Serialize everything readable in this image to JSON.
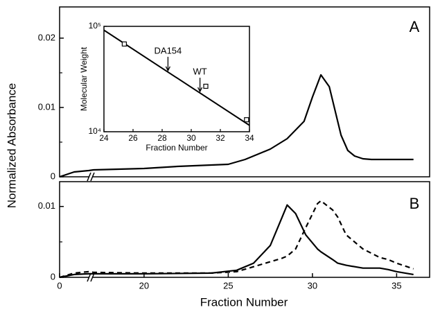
{
  "chart_data": [
    {
      "type": "line",
      "panel_label": "A",
      "ylabel": "Normalized Absorbance",
      "ylim": [
        0,
        0.0245
      ],
      "yticks": [
        0,
        0.01,
        0.02
      ],
      "minor_yticks": [
        0.005,
        0.015
      ],
      "xlim": [
        0,
        37
      ],
      "xbreak": [
        4,
        17
      ],
      "x": [
        0,
        2,
        4,
        17,
        20,
        22,
        25,
        26,
        27,
        27.5,
        28.5,
        29.5,
        30,
        30.5,
        31,
        31.4,
        31.7,
        32.1,
        32.5,
        33,
        33.5,
        36
      ],
      "series": [
        {
          "color": "#000000",
          "dash": false,
          "values": [
            0,
            0.0007,
            0.0009,
            0.001,
            0.0012,
            0.0015,
            0.0018,
            0.0025,
            0.0035,
            0.004,
            0.0055,
            0.008,
            0.0115,
            0.0147,
            0.013,
            0.009,
            0.006,
            0.0038,
            0.003,
            0.0026,
            0.0025,
            0.0025
          ]
        }
      ]
    },
    {
      "type": "line",
      "panel_label": "B",
      "xlabel": "Fraction Number",
      "ylim": [
        0,
        0.0135
      ],
      "yticks": [
        0,
        0.01
      ],
      "minor_yticks": [
        0.005
      ],
      "xlim": [
        0,
        37
      ],
      "xbreak": [
        4,
        17
      ],
      "xticks": [
        0,
        20,
        25,
        30,
        35
      ],
      "x": [
        0,
        2,
        4,
        17,
        20,
        24,
        25.5,
        26.5,
        27.5,
        28.2,
        28.5,
        29,
        29.6,
        30.3,
        30.5,
        31.2,
        31.5,
        32,
        33,
        34,
        34.5,
        35,
        36
      ],
      "series": [
        {
          "color": "#000000",
          "dash": false,
          "values": [
            0,
            0.0004,
            0.0005,
            0.0005,
            0.0005,
            0.0006,
            0.001,
            0.002,
            0.0045,
            0.0085,
            0.0102,
            0.009,
            0.006,
            0.004,
            0.0036,
            0.0025,
            0.002,
            0.0017,
            0.0013,
            0.0013,
            0.0011,
            0.0008,
            0.0004
          ]
        },
        {
          "color": "#000000",
          "dash": true,
          "values": [
            0,
            0.0006,
            0.0008,
            0.0007,
            0.0006,
            0.0006,
            0.0008,
            0.0015,
            0.0022,
            0.0027,
            0.003,
            0.004,
            0.007,
            0.0104,
            0.0108,
            0.0095,
            0.0085,
            0.006,
            0.004,
            0.0028,
            0.0025,
            0.002,
            0.0012
          ]
        }
      ]
    },
    {
      "type": "scatter",
      "xlabel": "Fraction Number",
      "ylabel": "Molecular Weight",
      "log_y": true,
      "xlim": [
        24,
        34
      ],
      "xticks": [
        24,
        26,
        28,
        30,
        32,
        34
      ],
      "ylim": [
        10000,
        100000
      ],
      "yticks": [
        {
          "value": 10000,
          "label": "10⁴"
        },
        {
          "value": 100000,
          "label": "10⁵"
        }
      ],
      "x": [
        25.4,
        31,
        33.8
      ],
      "values": [
        68000,
        27000,
        13000
      ],
      "fit": {
        "x": [
          24,
          34
        ],
        "values": [
          92000,
          11500
        ]
      },
      "annotations": [
        {
          "text": "DA154",
          "x": 28.4
        },
        {
          "text": "WT",
          "x": 30.6
        }
      ]
    }
  ]
}
